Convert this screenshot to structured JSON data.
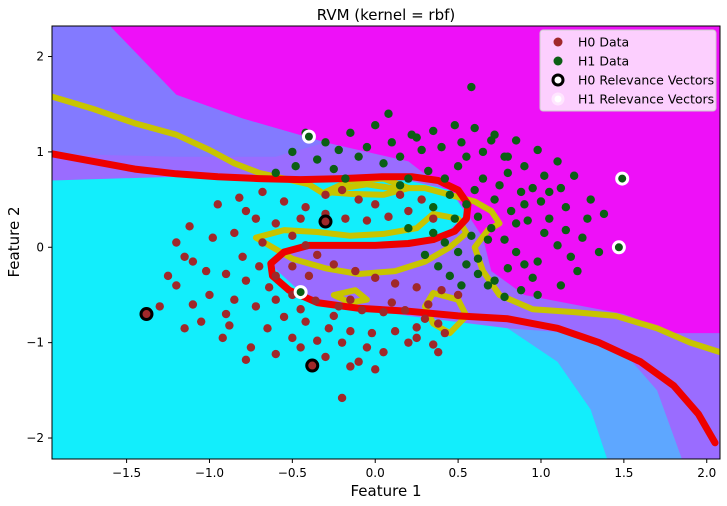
{
  "chart_data": {
    "type": "scatter",
    "title": "RVM (kernel = rbf)",
    "xlabel": "Feature 1",
    "ylabel": "Feature 2",
    "xlim": [
      -1.95,
      2.08
    ],
    "ylim": [
      -2.22,
      2.32
    ],
    "x_ticks": [
      -1.5,
      -1.0,
      -0.5,
      0.0,
      0.5,
      1.0,
      1.5,
      2.0
    ],
    "x_tick_labels": [
      "−1.5",
      "−1.0",
      "−0.5",
      "0.0",
      "0.5",
      "1.0",
      "1.5",
      "2.0"
    ],
    "y_ticks": [
      -2,
      -1,
      0,
      1,
      2
    ],
    "y_tick_labels": [
      "−2",
      "−1",
      "0",
      "1",
      "2"
    ],
    "grid": false,
    "legend_position": "top-right",
    "colors": {
      "h0": "#a0282a",
      "h1": "#0b5e14",
      "decision_boundary": "#ee0000",
      "margin_contour": "#c8c400",
      "background_low": "#12eefc",
      "background_high": "#ee10f8",
      "background_mid": "#8a80ff"
    },
    "series": [
      {
        "name": "H0 Data",
        "points": [
          [
            -0.85,
            -0.55
          ],
          [
            -0.72,
            -0.62
          ],
          [
            -0.55,
            -0.73
          ],
          [
            -0.42,
            -0.78
          ],
          [
            -0.28,
            -0.85
          ],
          [
            -0.15,
            -0.88
          ],
          [
            -0.02,
            -0.9
          ],
          [
            0.12,
            -0.88
          ],
          [
            0.25,
            -0.84
          ],
          [
            0.38,
            -0.8
          ],
          [
            -0.9,
            -0.28
          ],
          [
            -0.78,
            -0.35
          ],
          [
            -0.64,
            -0.42
          ],
          [
            -0.5,
            -0.5
          ],
          [
            -0.36,
            -0.56
          ],
          [
            -0.22,
            -0.62
          ],
          [
            -0.08,
            -0.66
          ],
          [
            0.05,
            -0.68
          ],
          [
            0.18,
            -0.66
          ],
          [
            0.32,
            -0.6
          ],
          [
            -1.1,
            -0.15
          ],
          [
            -1.2,
            -0.4
          ],
          [
            -1.3,
            -0.62
          ],
          [
            -1.05,
            -0.78
          ],
          [
            -0.92,
            -0.95
          ],
          [
            -0.75,
            -1.05
          ],
          [
            -0.6,
            -1.12
          ],
          [
            -0.45,
            -1.05
          ],
          [
            -0.3,
            -1.15
          ],
          [
            -0.1,
            -1.2
          ],
          [
            0.05,
            -1.1
          ],
          [
            0.2,
            -1.0
          ],
          [
            0.35,
            -1.02
          ],
          [
            0.42,
            -0.9
          ],
          [
            -0.98,
            0.1
          ],
          [
            -1.12,
            0.22
          ],
          [
            -1.2,
            0.05
          ],
          [
            -0.85,
            0.15
          ],
          [
            -0.72,
            0.3
          ],
          [
            -0.6,
            0.25
          ],
          [
            -0.5,
            0.12
          ],
          [
            -0.42,
            0.02
          ],
          [
            -0.35,
            -0.08
          ],
          [
            -0.25,
            -0.18
          ],
          [
            -0.12,
            -0.25
          ],
          [
            0.0,
            -0.32
          ],
          [
            0.12,
            -0.38
          ],
          [
            0.25,
            -0.42
          ],
          [
            0.4,
            -0.45
          ],
          [
            0.5,
            -0.5
          ],
          [
            -0.95,
            0.45
          ],
          [
            -0.82,
            0.52
          ],
          [
            -0.68,
            0.58
          ],
          [
            -0.55,
            0.48
          ],
          [
            -0.42,
            0.42
          ],
          [
            -0.3,
            0.35
          ],
          [
            -0.18,
            0.3
          ],
          [
            -0.05,
            0.28
          ],
          [
            0.08,
            0.32
          ],
          [
            0.2,
            0.38
          ],
          [
            -0.7,
            -0.2
          ],
          [
            -0.6,
            -0.3
          ],
          [
            -0.8,
            -0.1
          ],
          [
            -0.5,
            -0.2
          ],
          [
            -0.4,
            -0.3
          ],
          [
            -1.0,
            -0.5
          ],
          [
            -1.1,
            -0.6
          ],
          [
            -0.9,
            -0.7
          ],
          [
            -1.25,
            -0.3
          ],
          [
            -1.15,
            -0.1
          ],
          [
            -0.3,
            0.55
          ],
          [
            -0.2,
            0.6
          ],
          [
            -0.1,
            0.5
          ],
          [
            0.0,
            0.45
          ],
          [
            0.15,
            0.55
          ],
          [
            0.28,
            0.5
          ],
          [
            0.35,
            0.3
          ],
          [
            -0.65,
            -0.85
          ],
          [
            -0.5,
            -0.95
          ],
          [
            -0.35,
            -0.98
          ],
          [
            -0.2,
            -1.0
          ],
          [
            -0.15,
            -1.25
          ],
          [
            0.0,
            -1.28
          ],
          [
            -0.05,
            -1.05
          ],
          [
            0.25,
            -0.95
          ],
          [
            0.3,
            -0.75
          ],
          [
            0.1,
            -0.58
          ],
          [
            -0.15,
            -0.55
          ],
          [
            -0.25,
            -0.72
          ],
          [
            -0.45,
            -0.65
          ],
          [
            -1.02,
            -0.25
          ],
          [
            -0.88,
            -0.82
          ],
          [
            -0.78,
            -1.18
          ],
          [
            -0.6,
            -0.55
          ],
          [
            -0.68,
            0.05
          ],
          [
            -0.78,
            0.38
          ],
          [
            -0.45,
            0.3
          ],
          [
            -0.2,
            -1.58
          ],
          [
            0.38,
            -1.1
          ],
          [
            -1.15,
            -0.85
          ]
        ]
      },
      {
        "name": "H1 Data",
        "points": [
          [
            0.05,
            0.88
          ],
          [
            0.15,
            0.95
          ],
          [
            0.28,
            1.02
          ],
          [
            0.4,
            1.05
          ],
          [
            0.52,
            1.1
          ],
          [
            0.65,
            1.0
          ],
          [
            0.78,
            0.95
          ],
          [
            0.9,
            0.85
          ],
          [
            1.02,
            0.75
          ],
          [
            1.12,
            0.62
          ],
          [
            0.1,
            1.1
          ],
          [
            0.22,
            1.18
          ],
          [
            0.35,
            1.22
          ],
          [
            0.48,
            1.28
          ],
          [
            0.6,
            1.25
          ],
          [
            0.72,
            1.18
          ],
          [
            0.85,
            1.12
          ],
          [
            0.98,
            1.02
          ],
          [
            1.1,
            0.9
          ],
          [
            1.2,
            0.75
          ],
          [
            -0.1,
            0.95
          ],
          [
            -0.22,
            1.02
          ],
          [
            -0.35,
            0.92
          ],
          [
            -0.48,
            0.85
          ],
          [
            -0.6,
            0.78
          ],
          [
            -0.3,
            1.1
          ],
          [
            -0.15,
            1.2
          ],
          [
            0.0,
            1.28
          ],
          [
            0.08,
            1.4
          ],
          [
            0.58,
            1.68
          ],
          [
            0.45,
            0.55
          ],
          [
            0.55,
            0.45
          ],
          [
            0.62,
            0.32
          ],
          [
            0.7,
            0.2
          ],
          [
            0.78,
            0.08
          ],
          [
            0.85,
            -0.05
          ],
          [
            0.9,
            -0.18
          ],
          [
            0.95,
            -0.32
          ],
          [
            0.88,
            -0.45
          ],
          [
            0.78,
            -0.52
          ],
          [
            0.6,
            0.6
          ],
          [
            0.72,
            0.5
          ],
          [
            0.82,
            0.38
          ],
          [
            0.92,
            0.28
          ],
          [
            1.02,
            0.15
          ],
          [
            1.1,
            0.02
          ],
          [
            1.18,
            -0.1
          ],
          [
            1.22,
            -0.25
          ],
          [
            1.12,
            -0.4
          ],
          [
            0.98,
            -0.5
          ],
          [
            0.35,
            0.15
          ],
          [
            0.42,
            0.05
          ],
          [
            0.5,
            -0.05
          ],
          [
            0.55,
            -0.18
          ],
          [
            0.62,
            -0.28
          ],
          [
            0.68,
            -0.4
          ],
          [
            0.3,
            -0.08
          ],
          [
            0.38,
            -0.2
          ],
          [
            0.45,
            -0.3
          ],
          [
            0.52,
            -0.4
          ],
          [
            0.65,
            0.72
          ],
          [
            0.75,
            0.65
          ],
          [
            0.88,
            0.58
          ],
          [
            1.0,
            0.48
          ],
          [
            1.15,
            0.42
          ],
          [
            1.28,
            0.3
          ],
          [
            1.3,
            0.5
          ],
          [
            1.38,
            0.35
          ],
          [
            1.25,
            0.1
          ],
          [
            1.35,
            -0.05
          ],
          [
            0.2,
            0.72
          ],
          [
            0.32,
            0.8
          ],
          [
            0.5,
            0.85
          ],
          [
            0.8,
            0.78
          ],
          [
            0.95,
            0.62
          ],
          [
            1.05,
            0.58
          ],
          [
            0.68,
            0.08
          ],
          [
            0.58,
            0.12
          ],
          [
            0.8,
            -0.22
          ],
          [
            0.72,
            -0.35
          ],
          [
            -0.42,
            1.2
          ],
          [
            -0.5,
            1.0
          ],
          [
            -0.25,
            0.82
          ],
          [
            0.15,
            0.65
          ],
          [
            0.42,
            0.72
          ],
          [
            0.55,
            0.95
          ],
          [
            0.7,
            1.12
          ],
          [
            0.25,
            1.15
          ],
          [
            -0.05,
            1.05
          ],
          [
            -0.18,
            0.72
          ],
          [
            0.9,
            0.45
          ],
          [
            1.05,
            0.3
          ],
          [
            1.15,
            0.18
          ],
          [
            0.98,
            -0.15
          ],
          [
            0.85,
            0.25
          ],
          [
            0.62,
            -0.12
          ],
          [
            0.48,
            0.3
          ],
          [
            0.35,
            0.42
          ],
          [
            0.2,
            0.2
          ],
          [
            0.8,
            0.95
          ]
        ]
      },
      {
        "name": "H0 Relevance Vectors",
        "points": [
          [
            -1.38,
            -0.7
          ],
          [
            -0.38,
            -1.24
          ],
          [
            -0.3,
            0.27
          ]
        ]
      },
      {
        "name": "H1 Relevance Vectors",
        "points": [
          [
            -0.4,
            1.16
          ],
          [
            1.49,
            0.72
          ],
          [
            1.47,
            0.0
          ],
          [
            -0.45,
            -0.47
          ]
        ]
      }
    ],
    "decision_boundary": [
      [
        -1.95,
        0.98
      ],
      [
        -1.7,
        0.9
      ],
      [
        -1.45,
        0.82
      ],
      [
        -1.2,
        0.77
      ],
      [
        -0.95,
        0.74
      ],
      [
        -0.7,
        0.72
      ],
      [
        -0.45,
        0.71
      ],
      [
        -0.2,
        0.72
      ],
      [
        0.05,
        0.74
      ],
      [
        0.22,
        0.74
      ],
      [
        0.38,
        0.7
      ],
      [
        0.5,
        0.6
      ],
      [
        0.56,
        0.45
      ],
      [
        0.55,
        0.3
      ],
      [
        0.48,
        0.17
      ],
      [
        0.35,
        0.08
      ],
      [
        0.2,
        0.04
      ],
      [
        0.0,
        0.02
      ],
      [
        -0.2,
        0.02
      ],
      [
        -0.4,
        0.02
      ],
      [
        -0.55,
        -0.05
      ],
      [
        -0.63,
        -0.17
      ],
      [
        -0.62,
        -0.3
      ],
      [
        -0.52,
        -0.45
      ],
      [
        -0.35,
        -0.58
      ],
      [
        -0.1,
        -0.64
      ],
      [
        0.2,
        -0.67
      ],
      [
        0.5,
        -0.72
      ],
      [
        0.8,
        -0.75
      ],
      [
        1.1,
        -0.85
      ],
      [
        1.35,
        -1.0
      ],
      [
        1.6,
        -1.2
      ],
      [
        1.8,
        -1.45
      ],
      [
        1.95,
        -1.75
      ],
      [
        2.05,
        -2.05
      ]
    ],
    "margin_contours": [
      [
        [
          -1.95,
          1.58
        ],
        [
          -1.7,
          1.45
        ],
        [
          -1.45,
          1.3
        ],
        [
          -1.2,
          1.18
        ],
        [
          -1.0,
          1.02
        ],
        [
          -0.85,
          0.88
        ],
        [
          -0.7,
          0.78
        ],
        [
          -0.55,
          0.72
        ],
        [
          -0.4,
          0.66
        ],
        [
          -0.3,
          0.55
        ],
        [
          -0.2,
          0.62
        ],
        [
          -0.05,
          0.66
        ],
        [
          0.1,
          0.62
        ],
        [
          0.3,
          0.62
        ],
        [
          0.45,
          0.55
        ],
        [
          0.6,
          0.48
        ],
        [
          0.7,
          0.38
        ],
        [
          0.75,
          0.25
        ],
        [
          0.68,
          0.18
        ],
        [
          0.6,
          0.0
        ],
        [
          0.65,
          -0.25
        ],
        [
          0.75,
          -0.5
        ],
        [
          0.95,
          -0.65
        ],
        [
          1.2,
          -0.68
        ],
        [
          1.45,
          -0.72
        ],
        [
          1.7,
          -0.85
        ],
        [
          1.9,
          -1.0
        ],
        [
          2.08,
          -1.1
        ]
      ],
      [
        [
          -0.72,
          0.1
        ],
        [
          -0.55,
          0.18
        ],
        [
          -0.35,
          0.16
        ],
        [
          -0.15,
          0.12
        ],
        [
          0.05,
          0.14
        ],
        [
          0.25,
          0.2
        ],
        [
          0.35,
          0.35
        ],
        [
          0.5,
          0.3
        ],
        [
          0.55,
          0.15
        ],
        [
          0.45,
          0.0
        ],
        [
          0.3,
          -0.15
        ],
        [
          0.12,
          -0.25
        ],
        [
          -0.1,
          -0.28
        ],
        [
          -0.3,
          -0.22
        ],
        [
          -0.5,
          -0.12
        ],
        [
          -0.72,
          0.1
        ]
      ],
      [
        [
          -0.25,
          -0.5
        ],
        [
          -0.15,
          -0.58
        ],
        [
          -0.05,
          -0.55
        ],
        [
          -0.12,
          -0.45
        ],
        [
          -0.25,
          -0.5
        ]
      ],
      [
        [
          0.35,
          -0.48
        ],
        [
          0.5,
          -0.55
        ],
        [
          0.55,
          -0.72
        ],
        [
          0.45,
          -0.9
        ],
        [
          0.35,
          -0.8
        ],
        [
          0.3,
          -0.62
        ],
        [
          0.35,
          -0.48
        ]
      ],
      [
        [
          -0.3,
          0.58
        ],
        [
          -0.15,
          0.7
        ],
        [
          0.05,
          0.72
        ],
        [
          0.2,
          0.62
        ],
        [
          0.05,
          0.55
        ],
        [
          -0.15,
          0.56
        ],
        [
          -0.3,
          0.58
        ]
      ]
    ]
  }
}
